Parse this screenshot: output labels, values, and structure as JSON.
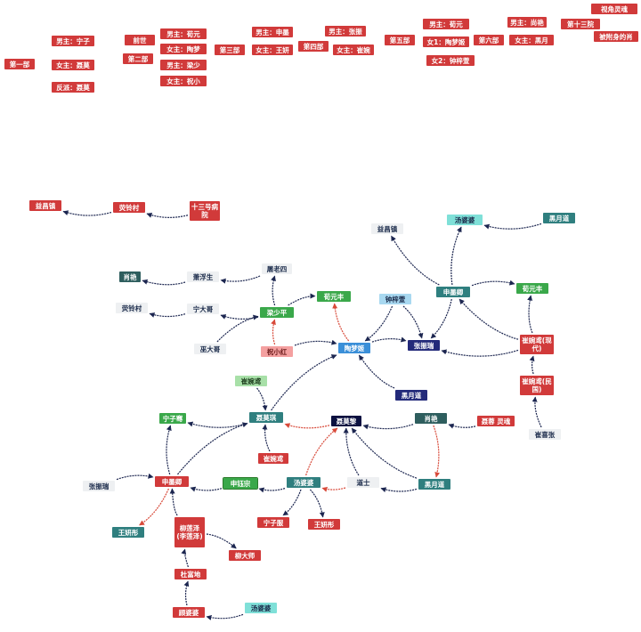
{
  "outline": [
    "视角灵魂",
    "第十三院",
    "被附身的肖",
    "男主：尚艳",
    "女主：黑月",
    "男主：荀元",
    "女1：陶梦姬",
    "女2：钟梓萱",
    "第六部",
    "第五部",
    "男主：张振",
    "女主：崔婉",
    "第四部",
    "男主：申墨",
    "女主：王妍",
    "第三部",
    "男主：荀元",
    "女主：陶梦",
    "男主：梁少",
    "女主：祝小",
    "前世",
    "第二部",
    "男主：宁子",
    "女主：聂莫",
    "反派：聂莫",
    "第一部"
  ],
  "graph": {
    "nodes": [
      "益昌镇",
      "荧铃村",
      "十三号病院",
      "汤婆婆",
      "黑月道",
      "益昌镇",
      "屠老四",
      "肖艳",
      "萧浮生",
      "荀元丰",
      "钟梓萱",
      "申墨卿",
      "荀元丰",
      "荧铃村",
      "宁大哥",
      "梁少平",
      "陶梦姬",
      "张振瑞",
      "崔婉鸢(现代)",
      "巫大哥",
      "祝小红",
      "黑月道",
      "崔婉鸢(民国)",
      "崔婉鸢",
      "宁子骞",
      "聂莫琪",
      "聂莫黎",
      "肖艳",
      "聂蓉 灵魂",
      "崔婉鸢",
      "崔喜张",
      "张振瑞",
      "申墨卿",
      "申钰宗",
      "汤婆婆",
      "道士",
      "黑月道",
      "王妍彤",
      "柳莲泽(李莲泽)",
      "宁子服",
      "王妍彤",
      "柳大师",
      "杜富地",
      "顾婆婆",
      "汤婆婆"
    ]
  }
}
